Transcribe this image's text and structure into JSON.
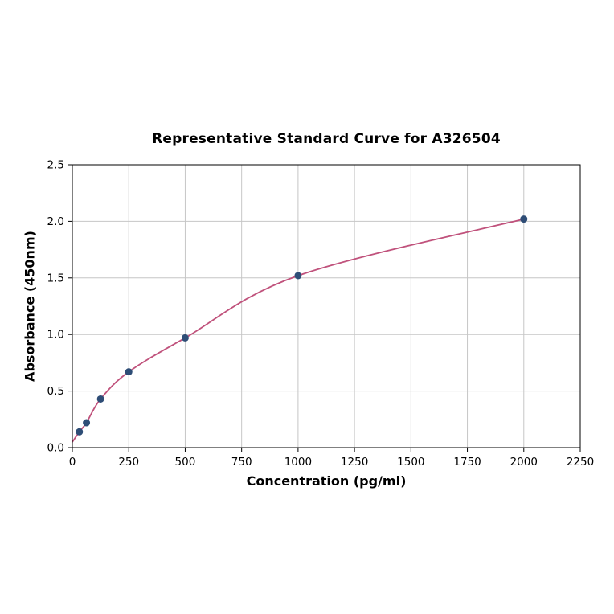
{
  "chart_data": {
    "type": "scatter",
    "title": "Representative Standard Curve for A326504",
    "xlabel": "Concentration (pg/ml)",
    "ylabel": "Absorbance (450nm)",
    "xlim": [
      0,
      2250
    ],
    "ylim": [
      0,
      2.5
    ],
    "grid": true,
    "x_ticks": [
      0,
      250,
      500,
      750,
      1000,
      1250,
      1500,
      1750,
      2000,
      2250
    ],
    "x_tick_labels": [
      "0",
      "250",
      "500",
      "750",
      "1000",
      "1250",
      "1500",
      "1750",
      "2000",
      "2250"
    ],
    "y_ticks": [
      0.0,
      0.5,
      1.0,
      1.5,
      2.0,
      2.5
    ],
    "y_tick_labels": [
      "0.0",
      "0.5",
      "1.0",
      "1.5",
      "2.0",
      "2.5"
    ],
    "points": [
      {
        "x": 31.25,
        "y": 0.14
      },
      {
        "x": 62.5,
        "y": 0.22
      },
      {
        "x": 125,
        "y": 0.43
      },
      {
        "x": 250,
        "y": 0.67
      },
      {
        "x": 500,
        "y": 0.97
      },
      {
        "x": 1000,
        "y": 1.52
      },
      {
        "x": 2000,
        "y": 2.02
      }
    ],
    "curve_start": {
      "x": 0,
      "y": 0.05
    },
    "colors": {
      "point": "#2e4d76",
      "curve": "#c0527c",
      "grid": "#c6c6c6",
      "axis": "#000000",
      "background": "#ffffff"
    }
  }
}
